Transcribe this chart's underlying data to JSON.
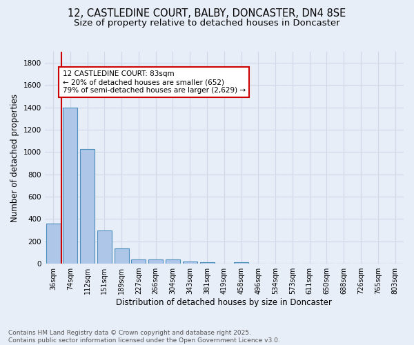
{
  "title1": "12, CASTLEDINE COURT, BALBY, DONCASTER, DN4 8SE",
  "title2": "Size of property relative to detached houses in Doncaster",
  "xlabel": "Distribution of detached houses by size in Doncaster",
  "ylabel": "Number of detached properties",
  "footer1": "Contains HM Land Registry data © Crown copyright and database right 2025.",
  "footer2": "Contains public sector information licensed under the Open Government Licence v3.0.",
  "categories": [
    "36sqm",
    "74sqm",
    "112sqm",
    "151sqm",
    "189sqm",
    "227sqm",
    "266sqm",
    "304sqm",
    "343sqm",
    "381sqm",
    "419sqm",
    "458sqm",
    "496sqm",
    "534sqm",
    "573sqm",
    "611sqm",
    "650sqm",
    "688sqm",
    "726sqm",
    "765sqm",
    "803sqm"
  ],
  "values": [
    360,
    1400,
    1030,
    295,
    135,
    40,
    35,
    35,
    20,
    15,
    0,
    15,
    0,
    0,
    0,
    0,
    0,
    0,
    0,
    0,
    0
  ],
  "bar_color": "#aec6e8",
  "bar_edge_color": "#4c8fbd",
  "ylim": [
    0,
    1900
  ],
  "yticks": [
    0,
    200,
    400,
    600,
    800,
    1000,
    1200,
    1400,
    1600,
    1800
  ],
  "vline_x": 0.5,
  "annotation_line1": "12 CASTLEDINE COURT: 83sqm",
  "annotation_line2": "← 20% of detached houses are smaller (652)",
  "annotation_line3": "79% of semi-detached houses are larger (2,629) →",
  "vline_color": "#cc0000",
  "annotation_box_color": "#cc0000",
  "background_color": "#e8eef8",
  "grid_color": "#d0d8e8",
  "title_fontsize": 10.5,
  "subtitle_fontsize": 9.5,
  "annotation_fontsize": 7.5,
  "footer_fontsize": 6.5
}
